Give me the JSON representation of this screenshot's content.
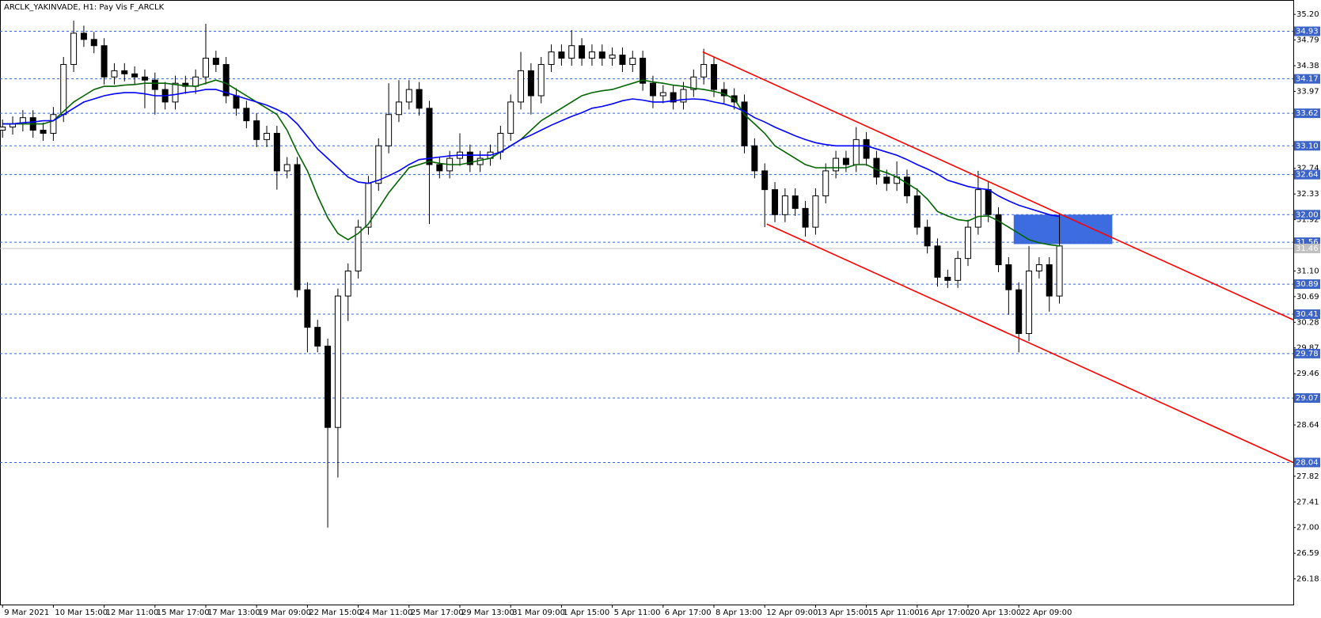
{
  "chart_data": {
    "type": "candlestick",
    "title": "ARCLK_YAKINVADE, H1:  Pay Vis F_ARCLK",
    "categories": [
      "9 Mar 2021",
      null,
      null,
      null,
      null,
      "10 Mar 15:00",
      null,
      null,
      null,
      null,
      "12 Mar 11:00",
      null,
      null,
      null,
      null,
      "15 Mar 17:00",
      null,
      null,
      null,
      null,
      "17 Mar 13:00",
      null,
      null,
      null,
      null,
      "19 Mar 09:00",
      null,
      null,
      null,
      null,
      "22 Mar 15:00",
      null,
      null,
      null,
      null,
      "24 Mar 11:00",
      null,
      null,
      null,
      null,
      "25 Mar 17:00",
      null,
      null,
      null,
      null,
      "29 Mar 13:00",
      null,
      null,
      null,
      null,
      "31 Mar 09:00",
      null,
      null,
      null,
      null,
      "1 Apr 15:00",
      null,
      null,
      null,
      null,
      "5 Apr 11:00",
      null,
      null,
      null,
      null,
      "6 Apr 17:00",
      null,
      null,
      null,
      null,
      "8 Apr 13:00",
      null,
      null,
      null,
      null,
      "12 Apr 09:00",
      null,
      null,
      null,
      null,
      "13 Apr 15:00",
      null,
      null,
      null,
      null,
      "15 Apr 11:00",
      null,
      null,
      null,
      null,
      "16 Apr 17:00",
      null,
      null,
      null,
      null,
      "20 Apr 13:00",
      null,
      null,
      null,
      null,
      "22 Apr 09:00",
      null,
      null,
      null,
      null
    ],
    "open": [
      33.35,
      33.4,
      33.45,
      33.55,
      33.35,
      33.3,
      33.6,
      34.4,
      34.9,
      34.8,
      34.7,
      34.2,
      34.3,
      34.25,
      34.2,
      34.15,
      34.0,
      33.8,
      34.1,
      34.05,
      34.2,
      34.5,
      34.4,
      33.9,
      33.7,
      33.5,
      33.2,
      33.3,
      32.7,
      32.8,
      30.8,
      30.2,
      29.9,
      28.6,
      30.7,
      31.1,
      31.8,
      32.5,
      33.1,
      33.6,
      33.8,
      34.0,
      33.7,
      32.8,
      32.7,
      32.9,
      33.0,
      32.8,
      32.9,
      33.0,
      33.3,
      33.8,
      34.3,
      33.9,
      34.4,
      34.6,
      34.5,
      34.7,
      34.5,
      34.6,
      34.5,
      34.55,
      34.4,
      34.5,
      34.1,
      33.9,
      33.95,
      33.8,
      34.0,
      34.2,
      34.4,
      34.0,
      33.9,
      33.8,
      33.1,
      32.7,
      32.4,
      32.0,
      32.3,
      32.1,
      31.8,
      32.3,
      32.7,
      32.9,
      32.8,
      33.2,
      32.9,
      32.6,
      32.5,
      32.6,
      32.3,
      31.8,
      31.5,
      31.0,
      30.95,
      31.3,
      31.8,
      32.4,
      32.0,
      31.2,
      30.8,
      30.1,
      31.1,
      31.2,
      30.7
    ],
    "high": [
      33.52,
      33.57,
      33.67,
      33.67,
      33.47,
      33.72,
      34.52,
      35.1,
      35.02,
      34.92,
      34.82,
      34.42,
      34.42,
      34.37,
      34.32,
      34.27,
      34.12,
      34.22,
      34.22,
      34.32,
      35.05,
      34.62,
      34.52,
      34.02,
      33.82,
      33.62,
      33.42,
      33.42,
      32.92,
      32.92,
      30.92,
      30.32,
      30.02,
      30.82,
      31.22,
      31.92,
      32.62,
      33.22,
      34.1,
      34.15,
      34.15,
      34.12,
      33.82,
      32.92,
      33.02,
      33.3,
      33.12,
      33.02,
      33.12,
      33.42,
      33.92,
      34.6,
      34.42,
      34.52,
      34.72,
      34.72,
      34.95,
      34.82,
      34.72,
      34.72,
      34.67,
      34.67,
      34.62,
      34.62,
      34.22,
      34.07,
      34.07,
      34.12,
      34.32,
      34.65,
      34.52,
      34.12,
      34.02,
      33.92,
      33.22,
      32.82,
      32.52,
      32.42,
      32.42,
      32.22,
      32.42,
      32.82,
      33.02,
      33.02,
      33.4,
      33.32,
      33.02,
      32.72,
      32.85,
      32.72,
      32.42,
      31.92,
      31.62,
      31.12,
      31.42,
      31.92,
      32.7,
      32.52,
      32.12,
      31.32,
      30.92,
      31.5,
      31.32,
      31.32,
      32.0
    ],
    "low": [
      33.23,
      33.28,
      33.33,
      33.23,
      33.18,
      33.18,
      33.48,
      34.28,
      34.68,
      34.58,
      34.08,
      34.08,
      34.13,
      34.08,
      33.7,
      33.6,
      33.68,
      33.68,
      33.93,
      33.93,
      34.08,
      34.28,
      33.78,
      33.58,
      33.38,
      33.08,
      33.08,
      32.4,
      32.58,
      30.68,
      29.8,
      29.8,
      27.0,
      27.8,
      30.3,
      30.98,
      31.68,
      32.38,
      32.98,
      33.48,
      33.68,
      33.58,
      31.85,
      32.58,
      32.58,
      32.78,
      32.68,
      32.68,
      32.78,
      32.88,
      33.18,
      33.68,
      33.6,
      33.78,
      34.28,
      34.38,
      34.38,
      34.38,
      34.38,
      34.38,
      34.38,
      34.28,
      34.28,
      33.98,
      33.7,
      33.78,
      33.68,
      33.68,
      33.88,
      34.08,
      33.88,
      33.78,
      33.68,
      32.98,
      32.58,
      31.8,
      31.88,
      31.88,
      31.98,
      31.65,
      31.68,
      32.18,
      32.58,
      32.68,
      32.68,
      32.78,
      32.48,
      32.38,
      32.38,
      32.18,
      31.68,
      31.38,
      30.85,
      30.83,
      30.83,
      31.18,
      31.68,
      31.88,
      31.08,
      30.4,
      29.8,
      29.98,
      30.98,
      30.45,
      30.58
    ],
    "close": [
      33.4,
      33.45,
      33.55,
      33.35,
      33.3,
      33.6,
      34.4,
      34.9,
      34.8,
      34.7,
      34.2,
      34.3,
      34.25,
      34.2,
      34.15,
      34.0,
      33.8,
      34.1,
      34.05,
      34.2,
      34.5,
      34.4,
      33.9,
      33.7,
      33.5,
      33.2,
      33.3,
      32.7,
      32.8,
      30.8,
      30.2,
      29.9,
      28.6,
      30.7,
      31.1,
      31.8,
      32.5,
      33.1,
      33.6,
      33.8,
      34.0,
      33.7,
      32.8,
      32.7,
      32.9,
      33.0,
      32.8,
      32.9,
      33.0,
      33.3,
      33.8,
      34.3,
      33.9,
      34.4,
      34.6,
      34.5,
      34.7,
      34.5,
      34.6,
      34.5,
      34.55,
      34.4,
      34.5,
      34.1,
      33.9,
      33.95,
      33.8,
      34.0,
      34.2,
      34.4,
      34.0,
      33.9,
      33.8,
      33.1,
      32.7,
      32.4,
      32.0,
      32.3,
      32.1,
      31.8,
      32.3,
      32.7,
      32.9,
      32.8,
      33.2,
      32.9,
      32.6,
      32.5,
      32.6,
      32.3,
      31.8,
      31.5,
      31.0,
      30.95,
      31.3,
      31.8,
      32.4,
      32.0,
      31.2,
      30.8,
      30.1,
      31.1,
      31.2,
      30.7,
      31.5
    ],
    "moving_averages": [
      {
        "color": "#006400",
        "values": [
          33.45,
          33.45,
          33.45,
          33.45,
          33.45,
          33.5,
          33.65,
          33.8,
          33.9,
          34.0,
          34.05,
          34.05,
          34.07,
          34.08,
          34.1,
          34.1,
          34.1,
          34.08,
          34.06,
          34.05,
          34.1,
          34.15,
          34.1,
          34.0,
          33.9,
          33.8,
          33.7,
          33.6,
          33.35,
          33.0,
          32.7,
          32.3,
          31.95,
          31.7,
          31.6,
          31.7,
          31.85,
          32.1,
          32.35,
          32.55,
          32.75,
          32.8,
          32.85,
          32.82,
          32.8,
          32.8,
          32.83,
          32.87,
          32.9,
          33.0,
          33.1,
          33.2,
          33.35,
          33.5,
          33.6,
          33.7,
          33.8,
          33.9,
          33.95,
          33.98,
          34.0,
          34.05,
          34.1,
          34.15,
          34.12,
          34.1,
          34.07,
          34.05,
          34.02,
          34.0,
          33.97,
          33.93,
          33.85,
          33.6,
          33.45,
          33.3,
          33.1,
          33.0,
          32.9,
          32.8,
          32.75,
          32.75,
          32.75,
          32.75,
          32.8,
          32.8,
          32.72,
          32.67,
          32.6,
          32.5,
          32.4,
          32.25,
          32.05,
          31.98,
          31.92,
          31.9,
          31.97,
          31.98,
          31.9,
          31.8,
          31.7,
          31.6,
          31.55,
          31.52,
          31.5
        ]
      },
      {
        "color": "#0000ff",
        "values": [
          33.45,
          33.45,
          33.47,
          33.48,
          33.5,
          33.5,
          33.6,
          33.7,
          33.8,
          33.85,
          33.9,
          33.93,
          33.95,
          33.95,
          33.93,
          33.9,
          33.9,
          33.92,
          33.95,
          33.97,
          34.0,
          34.0,
          33.95,
          33.9,
          33.85,
          33.8,
          33.75,
          33.68,
          33.6,
          33.45,
          33.25,
          33.05,
          32.9,
          32.75,
          32.6,
          32.52,
          32.5,
          32.55,
          32.62,
          32.7,
          32.8,
          32.88,
          32.9,
          32.92,
          32.94,
          32.95,
          32.95,
          32.95,
          32.95,
          33.0,
          33.1,
          33.2,
          33.27,
          33.35,
          33.43,
          33.5,
          33.57,
          33.63,
          33.7,
          33.73,
          33.77,
          33.82,
          33.85,
          33.83,
          33.8,
          33.8,
          33.82,
          33.84,
          33.85,
          33.84,
          33.8,
          33.77,
          33.72,
          33.65,
          33.55,
          33.48,
          33.4,
          33.33,
          33.26,
          33.2,
          33.15,
          33.12,
          33.1,
          33.1,
          33.1,
          33.1,
          33.05,
          33.0,
          32.95,
          32.88,
          32.8,
          32.73,
          32.65,
          32.55,
          32.5,
          32.45,
          32.42,
          32.4,
          32.3,
          32.22,
          32.15,
          32.1,
          32.05,
          32.0,
          31.97
        ]
      }
    ],
    "up_color": "#ffffff",
    "down_color": "#000000",
    "candle_outline": "#000000",
    "ylim": [
      25.77,
      35.43
    ],
    "yticks": [
      {
        "value": 35.2,
        "label": "35.20"
      },
      34.79,
      34.38,
      33.97,
      32.74,
      32.33,
      31.92,
      {
        "value": 31.1,
        "label": "31.10"
      },
      30.69,
      30.28,
      29.87,
      29.46,
      28.64,
      27.82,
      27.41,
      {
        "value": 27.0,
        "label": "27.00"
      },
      26.59,
      26.18
    ],
    "levels": [
      34.93,
      34.17,
      33.62,
      {
        "value": 33.1,
        "label": "33.10"
      },
      32.64,
      {
        "value": 32.0,
        "label": "32.00"
      },
      31.56,
      30.89,
      30.41,
      29.78,
      29.07,
      28.04
    ],
    "level_color": "#3c64c8",
    "current_price": 31.46,
    "trendlines": [
      {
        "x": [
          68.9,
          127
        ],
        "y": [
          34.6,
          30.32
        ],
        "color": "#ff0000"
      },
      {
        "x": [
          75.2,
          127
        ],
        "y": [
          31.85,
          28.04
        ],
        "color": "#ff0000"
      }
    ],
    "zones": [
      {
        "x": [
          99.5,
          109.2
        ],
        "y": [
          32.0,
          31.53
        ],
        "color": "#3d6ce0"
      }
    ]
  }
}
